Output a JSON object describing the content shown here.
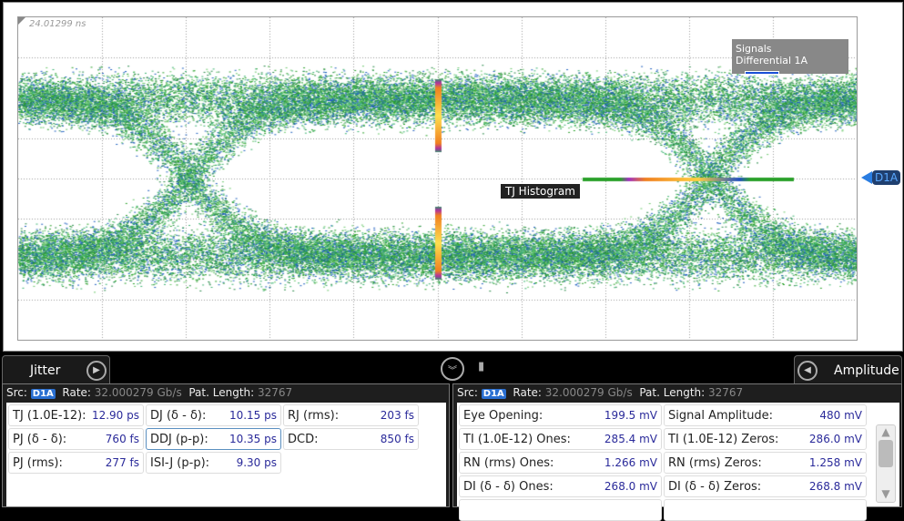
{
  "scope": {
    "timestamp": "24.01299 ns",
    "legend_title": "Signals",
    "legend_signal": "Differential 1A",
    "legend_color": "#1a4fd6",
    "tj_histogram_label": "TJ Histogram",
    "marker_label": "D1A"
  },
  "bar": {
    "collapse_icon": "double-chevron-down",
    "pin_icon": "pin"
  },
  "jitter": {
    "tab": "Jitter",
    "src_label": "Src:",
    "src": "D1A",
    "rate_label": "Rate:",
    "rate": "32.000279 Gb/s",
    "pat_label": "Pat. Length:",
    "pat": "32767",
    "cells": [
      {
        "label": "TJ (1.0E-12):",
        "value": "12.90 ps"
      },
      {
        "label": "DJ (δ - δ):",
        "value": "10.15 ps"
      },
      {
        "label": "RJ (rms):",
        "value": "203 fs"
      },
      {
        "label": "PJ (δ - δ):",
        "value": "760 fs"
      },
      {
        "label": "DDJ (p-p):",
        "value": "10.35 ps"
      },
      {
        "label": "DCD:",
        "value": "850 fs"
      },
      {
        "label": "PJ (rms):",
        "value": "277 fs"
      },
      {
        "label": "ISI-J (p-p):",
        "value": "9.30 ps"
      }
    ]
  },
  "amplitude": {
    "tab": "Amplitude",
    "src_label": "Src:",
    "src": "D1A",
    "rate_label": "Rate:",
    "rate": "32.000279 Gb/s",
    "pat_label": "Pat. Length:",
    "pat": "32767",
    "cells": [
      {
        "label": "Eye Opening:",
        "value": "199.5 mV"
      },
      {
        "label": "Signal Amplitude:",
        "value": "480 mV"
      },
      {
        "label": "TI (1.0E-12) Ones:",
        "value": "285.4 mV"
      },
      {
        "label": "TI (1.0E-12) Zeros:",
        "value": "286.0 mV"
      },
      {
        "label": "RN (rms) Ones:",
        "value": "1.266 mV"
      },
      {
        "label": "RN (rms) Zeros:",
        "value": "1.258 mV"
      },
      {
        "label": "DI (δ - δ) Ones:",
        "value": "268.0 mV"
      },
      {
        "label": "DI (δ - δ) Zeros:",
        "value": "268.8 mV"
      }
    ]
  }
}
